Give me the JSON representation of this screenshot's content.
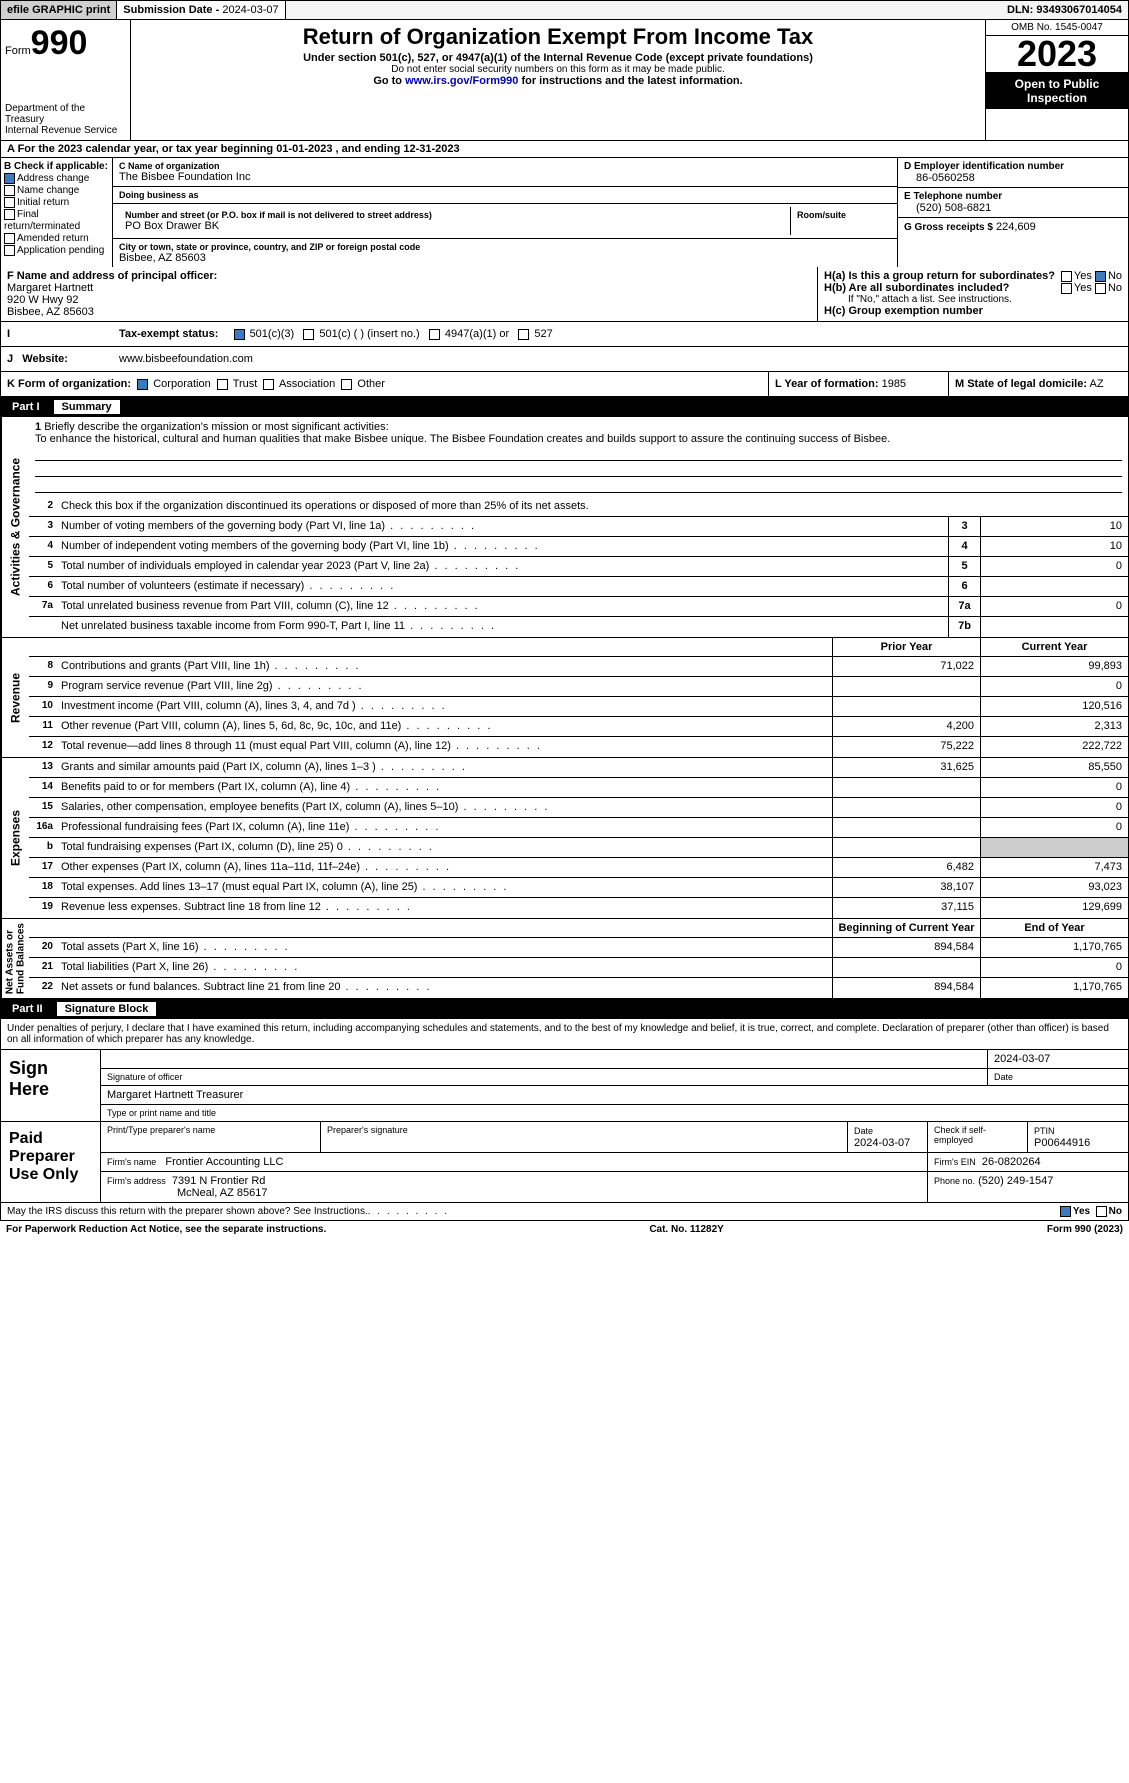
{
  "topbar": {
    "efile": "efile GRAPHIC print",
    "sub_label": "Submission Date - ",
    "sub_date": "2024-03-07",
    "dln_label": "DLN: ",
    "dln": "93493067014054"
  },
  "header": {
    "form_word": "Form",
    "form_no": "990",
    "title": "Return of Organization Exempt From Income Tax",
    "sub": "Under section 501(c), 527, or 4947(a)(1) of the Internal Revenue Code (except private foundations)",
    "ssn": "Do not enter social security numbers on this form as it may be made public.",
    "goto_pre": "Go to ",
    "goto_link": "www.irs.gov/Form990",
    "goto_post": " for instructions and the latest information.",
    "dept": "Department of the Treasury\nInternal Revenue Service",
    "omb": "OMB No. 1545-0047",
    "year": "2023",
    "inspect": "Open to Public Inspection"
  },
  "periodline": "A For the 2023 calendar year, or tax year beginning 01-01-2023   , and ending 12-31-2023",
  "colB": {
    "hdr": "B Check if applicable:",
    "addr": "Address change",
    "name": "Name change",
    "init": "Initial return",
    "final": "Final return/terminated",
    "amend": "Amended return",
    "app": "Application pending"
  },
  "colC": {
    "name_lbl": "C Name of organization",
    "name": "The Bisbee Foundation Inc",
    "dba_lbl": "Doing business as",
    "dba": "",
    "street_lbl": "Number and street (or P.O. box if mail is not delivered to street address)",
    "street": "PO Box Drawer BK",
    "room_lbl": "Room/suite",
    "room": "",
    "city_lbl": "City or town, state or province, country, and ZIP or foreign postal code",
    "city": "Bisbee, AZ  85603"
  },
  "colD": {
    "ein_lbl": "D Employer identification number",
    "ein": "86-0560258",
    "phone_lbl": "E Telephone number",
    "phone": "(520) 508-6821",
    "gross_lbl": "G Gross receipts $",
    "gross": "224,609"
  },
  "rowF": {
    "lbl": "F  Name and address of principal officer:",
    "name": "Margaret Hartnett",
    "addr1": "920 W Hwy 92",
    "addr2": "Bisbee, AZ  85603"
  },
  "rowH": {
    "ha": "H(a)  Is this a group return for subordinates?",
    "hb": "H(b)  Are all subordinates included?",
    "hb_note": "If \"No,\" attach a list. See instructions.",
    "hc": "H(c)  Group exemption number",
    "yes": "Yes",
    "no": "No"
  },
  "rowI": {
    "lbl": "Tax-exempt status:",
    "c3": "501(c)(3)",
    "c": "501(c) (  ) (insert no.)",
    "a1": "4947(a)(1) or",
    "s527": "527"
  },
  "rowJ": {
    "lbl": "Website:",
    "val": "www.bisbeefoundation.com"
  },
  "rowK": {
    "lbl": "K Form of organization:",
    "corp": "Corporation",
    "trust": "Trust",
    "assoc": "Association",
    "other": "Other",
    "yf_lbl": "L Year of formation:",
    "yf": "1985",
    "dom_lbl": "M State of legal domicile:",
    "dom": "AZ"
  },
  "part1": {
    "pn": "Part I",
    "pt": "Summary"
  },
  "mission": {
    "q1": "Briefly describe the organization's mission or most significant activities:",
    "txt": "To enhance the historical, cultural and human qualities that make Bisbee unique. The Bisbee Foundation creates and builds support to assure the continuing success of Bisbee.",
    "q2": "Check this box      if the organization discontinued its operations or disposed of more than 25% of its net assets."
  },
  "gov_lines": [
    {
      "n": "3",
      "t": "Number of voting members of the governing body (Part VI, line 1a)",
      "b": "3",
      "v": "10"
    },
    {
      "n": "4",
      "t": "Number of independent voting members of the governing body (Part VI, line 1b)",
      "b": "4",
      "v": "10"
    },
    {
      "n": "5",
      "t": "Total number of individuals employed in calendar year 2023 (Part V, line 2a)",
      "b": "5",
      "v": "0"
    },
    {
      "n": "6",
      "t": "Total number of volunteers (estimate if necessary)",
      "b": "6",
      "v": ""
    },
    {
      "n": "7a",
      "t": "Total unrelated business revenue from Part VIII, column (C), line 12",
      "b": "7a",
      "v": "0"
    },
    {
      "n": "",
      "t": "Net unrelated business taxable income from Form 990-T, Part I, line 11",
      "b": "7b",
      "v": ""
    }
  ],
  "rev_hdr": {
    "prior": "Prior Year",
    "curr": "Current Year"
  },
  "rev_lines": [
    {
      "n": "8",
      "t": "Contributions and grants (Part VIII, line 1h)",
      "p": "71,022",
      "c": "99,893"
    },
    {
      "n": "9",
      "t": "Program service revenue (Part VIII, line 2g)",
      "p": "",
      "c": "0"
    },
    {
      "n": "10",
      "t": "Investment income (Part VIII, column (A), lines 3, 4, and 7d )",
      "p": "",
      "c": "120,516"
    },
    {
      "n": "11",
      "t": "Other revenue (Part VIII, column (A), lines 5, 6d, 8c, 9c, 10c, and 11e)",
      "p": "4,200",
      "c": "2,313"
    },
    {
      "n": "12",
      "t": "Total revenue—add lines 8 through 11 (must equal Part VIII, column (A), line 12)",
      "p": "75,222",
      "c": "222,722"
    }
  ],
  "exp_lines": [
    {
      "n": "13",
      "t": "Grants and similar amounts paid (Part IX, column (A), lines 1–3 )",
      "p": "31,625",
      "c": "85,550"
    },
    {
      "n": "14",
      "t": "Benefits paid to or for members (Part IX, column (A), line 4)",
      "p": "",
      "c": "0"
    },
    {
      "n": "15",
      "t": "Salaries, other compensation, employee benefits (Part IX, column (A), lines 5–10)",
      "p": "",
      "c": "0"
    },
    {
      "n": "16a",
      "t": "Professional fundraising fees (Part IX, column (A), line 11e)",
      "p": "",
      "c": "0"
    },
    {
      "n": "b",
      "t": "Total fundraising expenses (Part IX, column (D), line 25) 0",
      "p": "SHADE",
      "c": "SHADE"
    },
    {
      "n": "17",
      "t": "Other expenses (Part IX, column (A), lines 11a–11d, 11f–24e)",
      "p": "6,482",
      "c": "7,473"
    },
    {
      "n": "18",
      "t": "Total expenses. Add lines 13–17 (must equal Part IX, column (A), line 25)",
      "p": "38,107",
      "c": "93,023"
    },
    {
      "n": "19",
      "t": "Revenue less expenses. Subtract line 18 from line 12",
      "p": "37,115",
      "c": "129,699"
    }
  ],
  "net_hdr": {
    "beg": "Beginning of Current Year",
    "end": "End of Year"
  },
  "net_lines": [
    {
      "n": "20",
      "t": "Total assets (Part X, line 16)",
      "p": "894,584",
      "c": "1,170,765"
    },
    {
      "n": "21",
      "t": "Total liabilities (Part X, line 26)",
      "p": "",
      "c": "0"
    },
    {
      "n": "22",
      "t": "Net assets or fund balances. Subtract line 21 from line 20",
      "p": "894,584",
      "c": "1,170,765"
    }
  ],
  "vtabs": {
    "gov": "Activities & Governance",
    "rev": "Revenue",
    "exp": "Expenses",
    "net": "Net Assets or\nFund Balances"
  },
  "part2": {
    "pn": "Part II",
    "pt": "Signature Block"
  },
  "sig_intro": "Under penalties of perjury, I declare that I have examined this return, including accompanying schedules and statements, and to the best of my knowledge and belief, it is true, correct, and complete. Declaration of preparer (other than officer) is based on all information of which preparer has any knowledge.",
  "sign": {
    "lab": "Sign Here",
    "sig_lbl": "Signature of officer",
    "name": "Margaret Hartnett Treasurer",
    "type_lbl": "Type or print name and title",
    "date_lbl": "Date",
    "date": "2024-03-07"
  },
  "prep": {
    "lab": "Paid Preparer Use Only",
    "r1": {
      "a": "Print/Type preparer's name",
      "b": "Preparer's signature",
      "c_lbl": "Date",
      "c": "2024-03-07",
      "d": "Check      if self-employed",
      "e_lbl": "PTIN",
      "e": "P00644916"
    },
    "r2": {
      "a": "Firm's name",
      "av": "Frontier Accounting LLC",
      "b": "Firm's EIN",
      "bv": "26-0820264"
    },
    "r3": {
      "a": "Firm's address",
      "av": "7391 N Frontier Rd",
      "av2": "McNeal, AZ  85617",
      "b": "Phone no.",
      "bv": "(520) 249-1547"
    }
  },
  "foot": {
    "q": "May the IRS discuss this return with the preparer shown above? See Instructions.",
    "yes": "Yes",
    "no": "No"
  },
  "foot2": {
    "l": "For Paperwork Reduction Act Notice, see the separate instructions.",
    "m": "Cat. No. 11282Y",
    "r": "Form 990 (2023)"
  }
}
